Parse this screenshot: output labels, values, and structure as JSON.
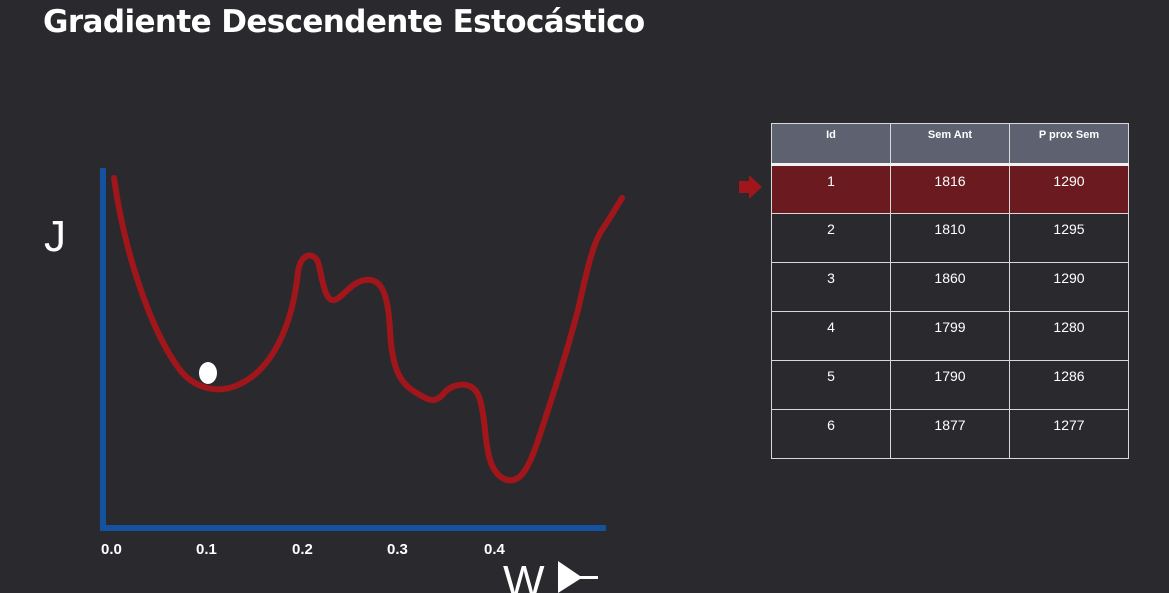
{
  "slide": {
    "title": "Gradiente Descendente Estocástico"
  },
  "diagram": {
    "y_axis_label": "J",
    "x_axis_label": "W",
    "x_ticks": [
      "0.0",
      "0.1",
      "0.2",
      "0.3",
      "0.4"
    ],
    "axis_color": "#1452a0",
    "curve_color": "#a0161b",
    "ball_color": "#ffffff"
  },
  "table": {
    "columns": [
      "Id",
      "Sem Ant",
      "P prox Sem"
    ],
    "rows": [
      [
        "1",
        "1816",
        "1290"
      ],
      [
        "2",
        "1810",
        "1295"
      ],
      [
        "3",
        "1860",
        "1290"
      ],
      [
        "4",
        "1799",
        "1280"
      ],
      [
        "5",
        "1790",
        "1286"
      ],
      [
        "6",
        "1877",
        "1277"
      ]
    ],
    "highlighted_row": 1,
    "header_color": "#5d6170",
    "highlight_color": "#6b1a1f",
    "arrow_color": "#a0161b"
  }
}
